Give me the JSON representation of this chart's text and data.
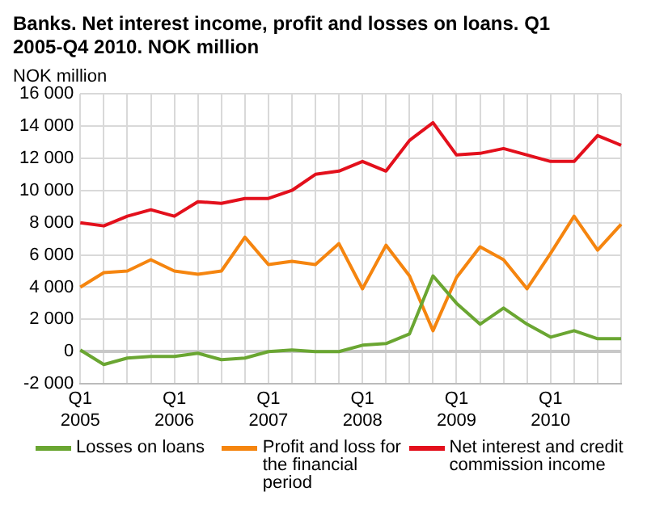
{
  "chart_data": {
    "type": "line",
    "title": "Banks. Net interest income, profit and losses on loans. Q1 2005-Q4 2010. NOK million",
    "ylabel": "NOK million",
    "categories": [
      "Q1 2005",
      null,
      null,
      null,
      "Q1 2006",
      null,
      null,
      null,
      "Q1 2007",
      null,
      null,
      null,
      "Q1 2008",
      null,
      null,
      null,
      "Q1 2009",
      null,
      null,
      null,
      "Q1 2010",
      null,
      null,
      null
    ],
    "series": [
      {
        "name": "Losses on loans",
        "color": "#6aa632",
        "values": [
          100,
          -800,
          -400,
          -300,
          -300,
          -100,
          -500,
          -400,
          0,
          100,
          0,
          0,
          400,
          500,
          1100,
          4700,
          3000,
          1700,
          2700,
          1700,
          900,
          1300,
          800,
          800
        ]
      },
      {
        "name": "Profit and loss for the financial period",
        "color": "#f5850f",
        "values": [
          4000,
          4900,
          5000,
          5700,
          5000,
          4800,
          5000,
          7100,
          5400,
          5600,
          5400,
          6700,
          3900,
          6600,
          4700,
          1300,
          4600,
          6500,
          5700,
          3900,
          6100,
          8400,
          6300,
          7900
        ]
      },
      {
        "name": "Net interest and credit commission income",
        "color": "#e3101c",
        "values": [
          8000,
          7800,
          8400,
          8800,
          8400,
          9300,
          9200,
          9500,
          9500,
          10000,
          11000,
          11200,
          11800,
          11200,
          13100,
          14200,
          12200,
          12300,
          12600,
          12200,
          11800,
          11800,
          13400,
          12800
        ]
      }
    ],
    "ylim": [
      -2000,
      16000
    ],
    "yticks": [
      {
        "value": -2000,
        "label": "-2 000"
      },
      {
        "value": 0,
        "label": "0"
      },
      {
        "value": 2000,
        "label": "2 000"
      },
      {
        "value": 4000,
        "label": "4 000"
      },
      {
        "value": 6000,
        "label": "6 000"
      },
      {
        "value": 8000,
        "label": "8 000"
      },
      {
        "value": 10000,
        "label": "10 000"
      },
      {
        "value": 12000,
        "label": "12 000"
      },
      {
        "value": 14000,
        "label": "14 000"
      },
      {
        "value": 16000,
        "label": "16 000"
      }
    ],
    "grid": true,
    "legend": "bottom",
    "marker": "none",
    "line_style": "solid"
  }
}
